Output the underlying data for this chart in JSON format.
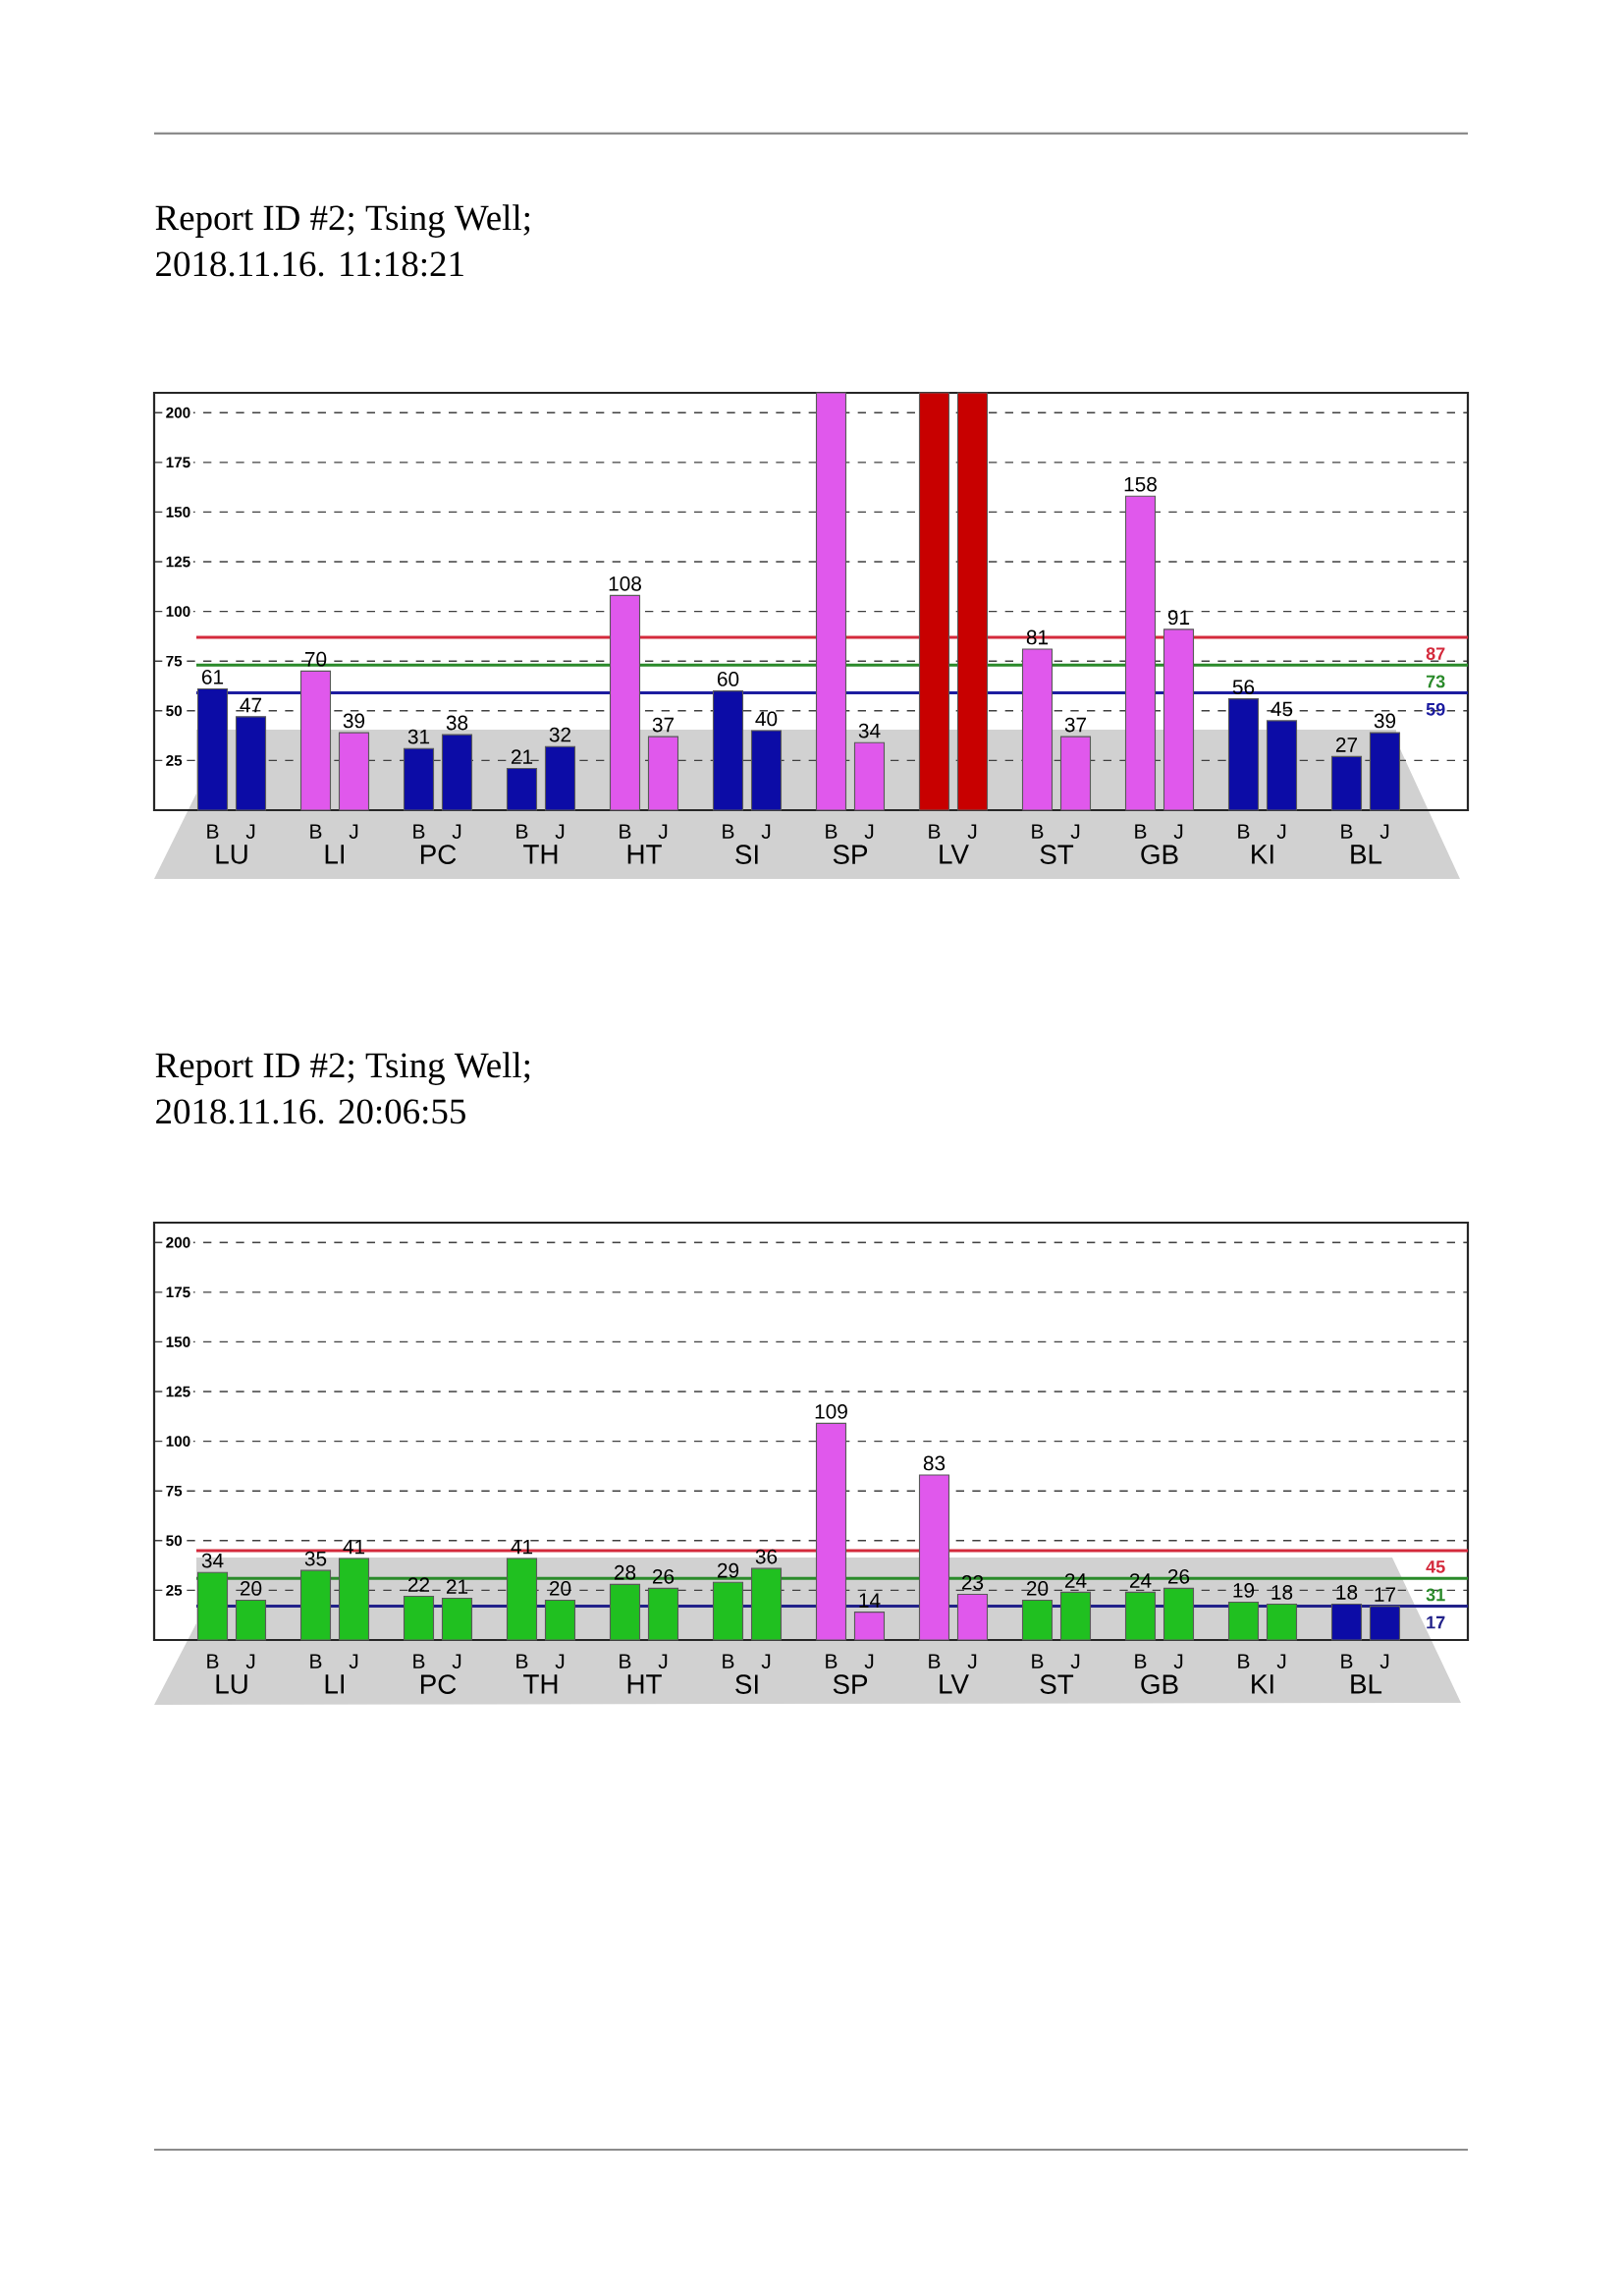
{
  "chart_data": [
    {
      "type": "bar",
      "title": "Report ID #2; Tsing Well;",
      "subtitle": "2018.11.16. 11:18:21",
      "categories": [
        "LU",
        "LI",
        "PC",
        "TH",
        "HT",
        "SI",
        "SP",
        "LV",
        "ST",
        "GB",
        "KI",
        "BL"
      ],
      "series": [
        {
          "name": "B",
          "colors": [
            "#0c0ca6",
            "#e058ec",
            "#0c0ca6",
            "#0c0ca6",
            "#e058ec",
            "#0c0ca6",
            "#e058ec",
            "#c80000",
            "#e058ec",
            "#e058ec",
            "#0c0ca6",
            "#0c0ca6"
          ],
          "values": [
            61,
            70,
            31,
            21,
            108,
            60,
            210,
            210,
            81,
            158,
            56,
            27
          ],
          "value_labels": [
            "61",
            "70",
            "31",
            "21",
            "108",
            "60",
            null,
            null,
            "81",
            "158",
            "56",
            "27"
          ]
        },
        {
          "name": "J",
          "colors": [
            "#0c0ca6",
            "#e058ec",
            "#0c0ca6",
            "#0c0ca6",
            "#e058ec",
            "#0c0ca6",
            "#e058ec",
            "#c80000",
            "#e058ec",
            "#e058ec",
            "#0c0ca6",
            "#0c0ca6"
          ],
          "values": [
            47,
            39,
            38,
            32,
            37,
            40,
            34,
            210,
            37,
            91,
            45,
            39
          ],
          "value_labels": [
            "47",
            "39",
            "38",
            "32",
            "37",
            "40",
            "34",
            null,
            "37",
            "91",
            "45",
            "39"
          ]
        }
      ],
      "ylim": [
        0,
        210
      ],
      "yticks": [
        25,
        50,
        75,
        100,
        125,
        150,
        175,
        200
      ],
      "grid": "y",
      "ref_lines": [
        {
          "axis": "y",
          "value": 87,
          "label": "87",
          "color": "#d42a3c"
        },
        {
          "axis": "y",
          "value": 73,
          "label": "73",
          "color": "#2a8a2a"
        },
        {
          "axis": "y",
          "value": 59,
          "label": "59",
          "color": "#1c1ca0"
        }
      ]
    },
    {
      "type": "bar",
      "title": "Report ID #2; Tsing Well;",
      "subtitle": "2018.11.16. 20:06:55",
      "categories": [
        "LU",
        "LI",
        "PC",
        "TH",
        "HT",
        "SI",
        "SP",
        "LV",
        "ST",
        "GB",
        "KI",
        "BL"
      ],
      "series": [
        {
          "name": "B",
          "colors": [
            "#20c020",
            "#20c020",
            "#20c020",
            "#20c020",
            "#20c020",
            "#20c020",
            "#e058ec",
            "#e058ec",
            "#20c020",
            "#20c020",
            "#20c020",
            "#0c0ca6"
          ],
          "values": [
            34,
            35,
            22,
            41,
            28,
            29,
            109,
            83,
            20,
            24,
            19,
            18
          ],
          "value_labels": [
            "34",
            "35",
            "22",
            "41",
            "28",
            "29",
            "109",
            "83",
            "20",
            "24",
            "19",
            "18"
          ]
        },
        {
          "name": "J",
          "colors": [
            "#20c020",
            "#20c020",
            "#20c020",
            "#20c020",
            "#20c020",
            "#20c020",
            "#e058ec",
            "#e058ec",
            "#20c020",
            "#20c020",
            "#20c020",
            "#0c0ca6"
          ],
          "values": [
            20,
            41,
            21,
            20,
            26,
            36,
            14,
            23,
            24,
            26,
            18,
            17
          ],
          "value_labels": [
            "20",
            "41",
            "21",
            "20",
            "26",
            "36",
            "14",
            "23",
            "24",
            "26",
            "18",
            "17"
          ]
        }
      ],
      "ylim": [
        0,
        210
      ],
      "yticks": [
        25,
        50,
        75,
        100,
        125,
        150,
        175,
        200
      ],
      "grid": "y",
      "ref_lines": [
        {
          "axis": "y",
          "value": 45,
          "label": "45",
          "color": "#d42a3c"
        },
        {
          "axis": "y",
          "value": 31,
          "label": "31",
          "color": "#2a8a2a"
        },
        {
          "axis": "y",
          "value": 17,
          "label": "17",
          "color": "#22228a"
        }
      ]
    }
  ]
}
